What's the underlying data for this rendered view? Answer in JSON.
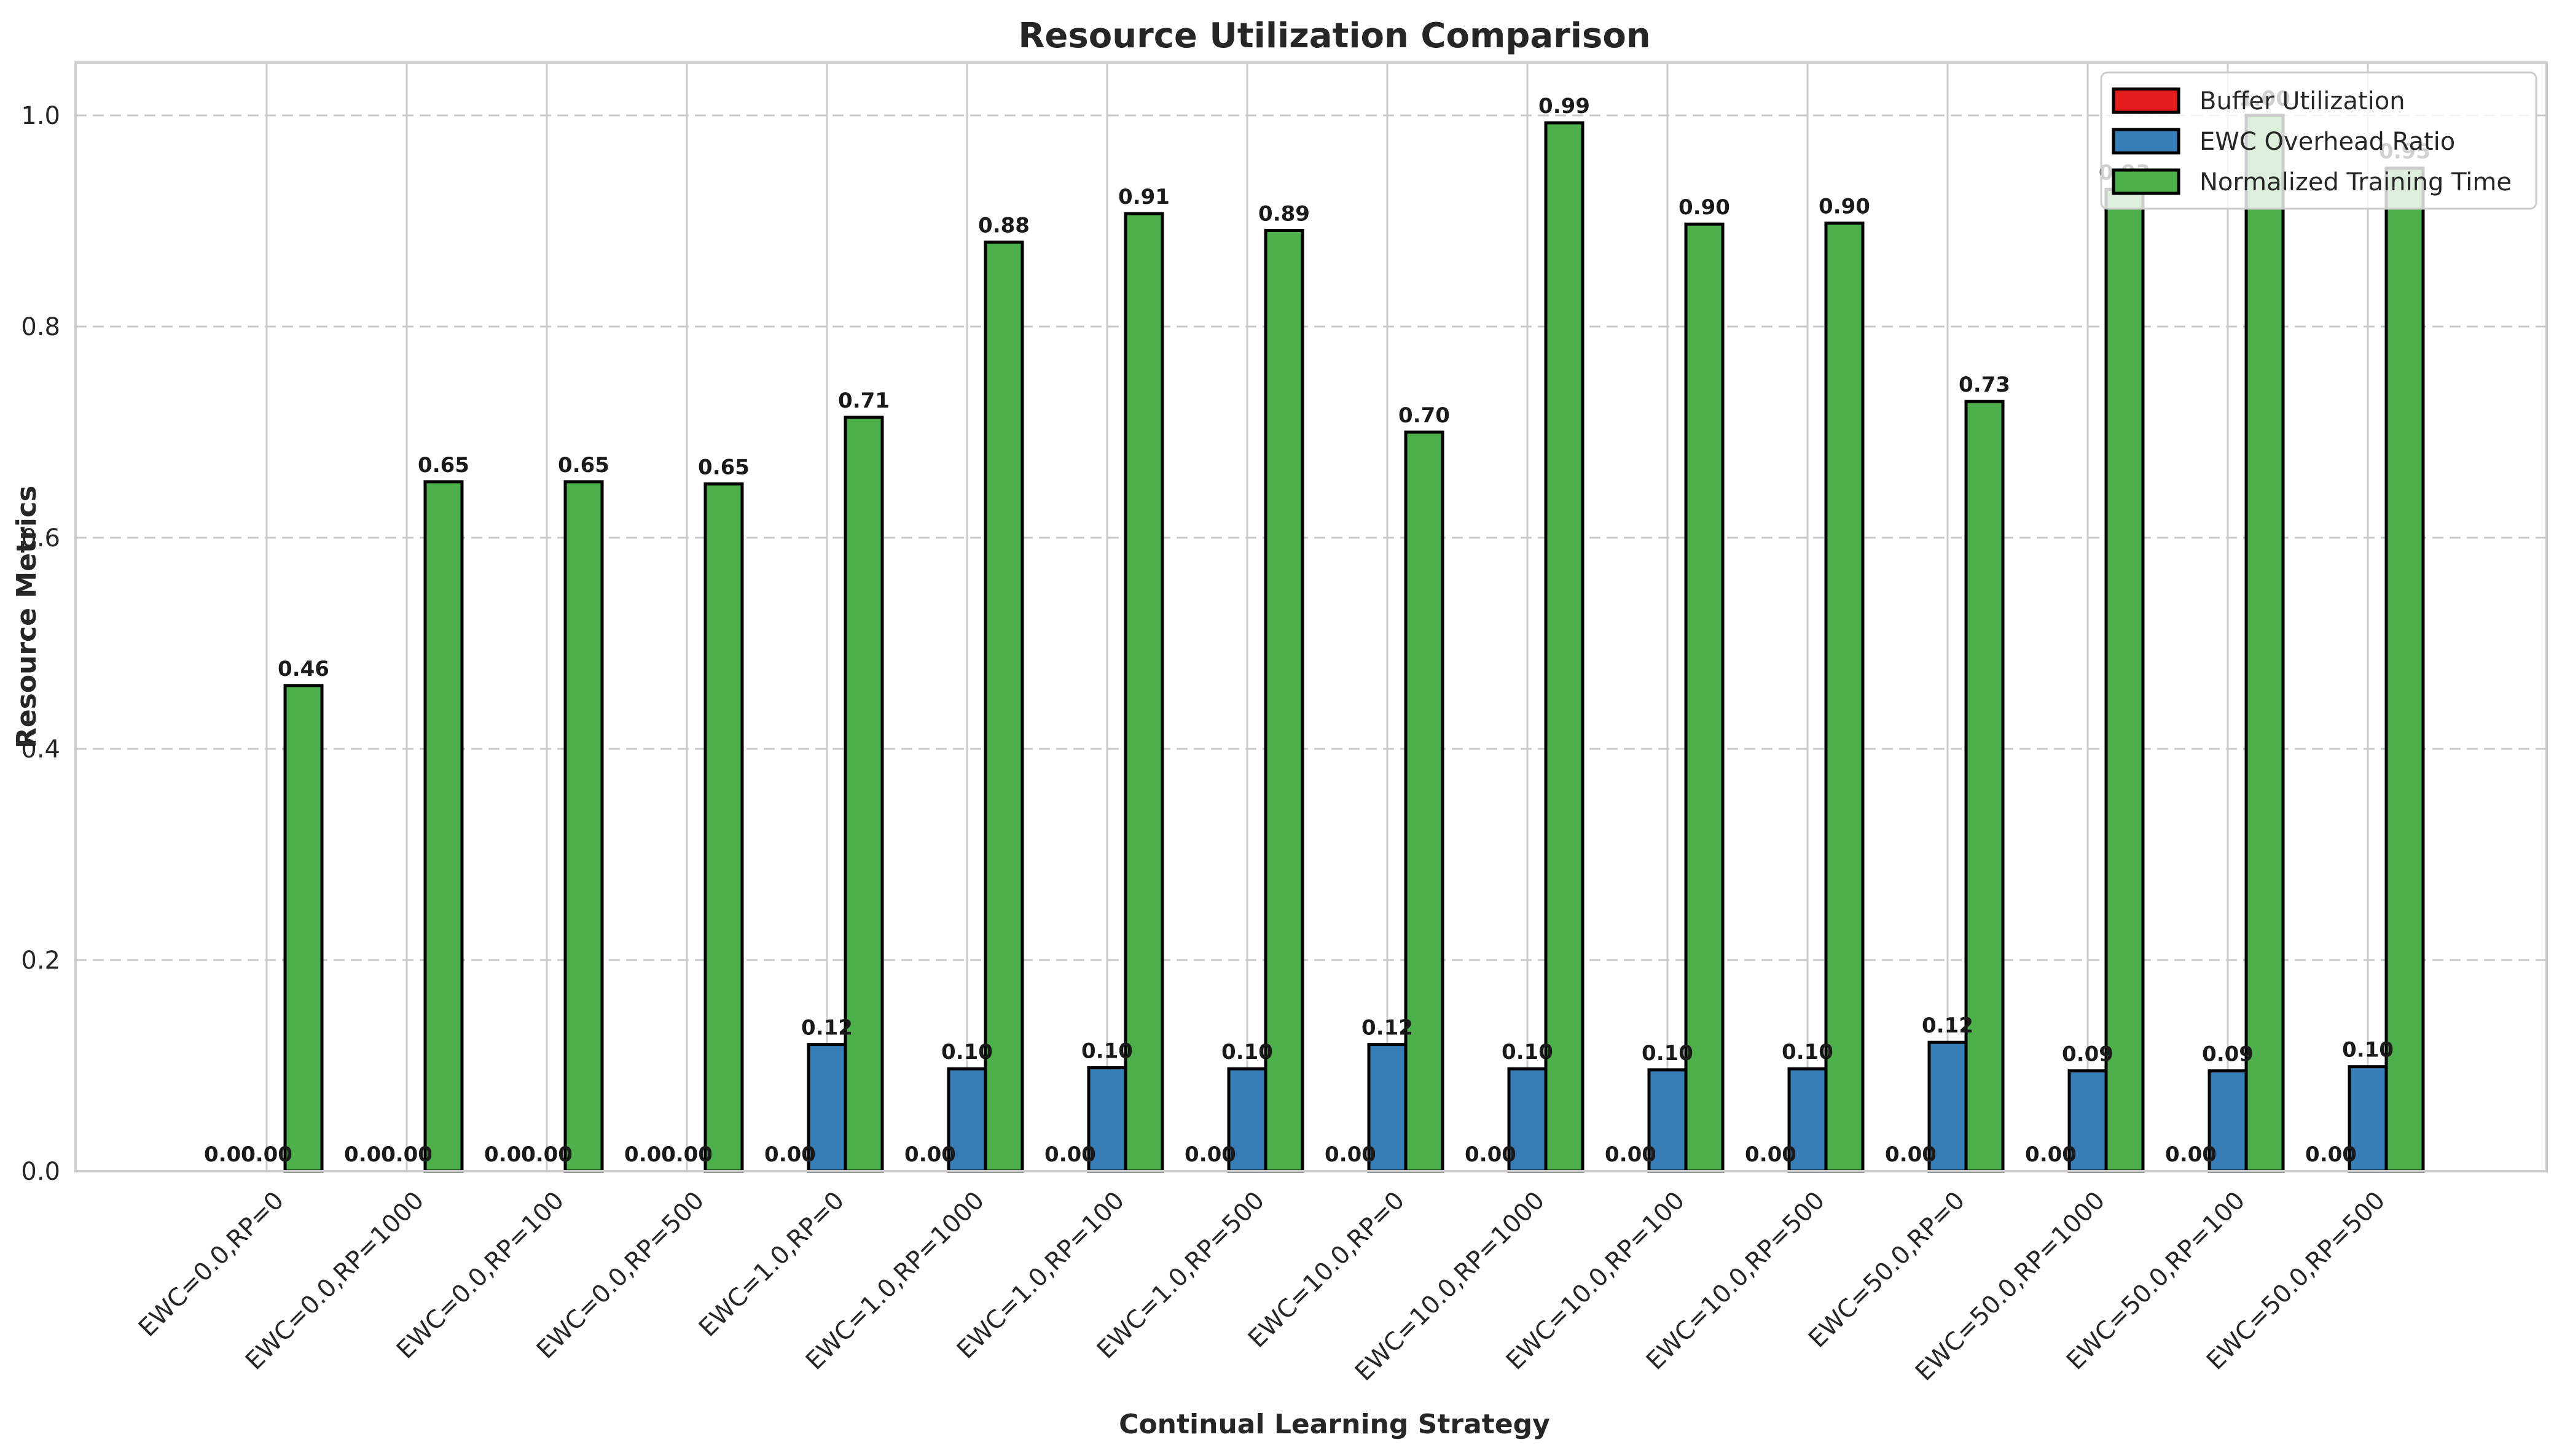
{
  "chart_data": {
    "type": "bar",
    "title": "Resource Utilization Comparison",
    "xlabel": "Continual Learning Strategy",
    "ylabel": "Resource Metrics",
    "ylim": [
      0,
      1.05
    ],
    "yticks": [
      "0.0",
      "0.2",
      "0.4",
      "0.6",
      "0.8",
      "1.0"
    ],
    "grid": "y dashed",
    "legend_position": "top-right",
    "categories": [
      "EWC=0.0,RP=0",
      "EWC=0.0,RP=1000",
      "EWC=0.0,RP=100",
      "EWC=0.0,RP=500",
      "EWC=1.0,RP=0",
      "EWC=1.0,RP=1000",
      "EWC=1.0,RP=100",
      "EWC=1.0,RP=500",
      "EWC=10.0,RP=0",
      "EWC=10.0,RP=1000",
      "EWC=10.0,RP=100",
      "EWC=10.0,RP=500",
      "EWC=50.0,RP=0",
      "EWC=50.0,RP=1000",
      "EWC=50.0,RP=100",
      "EWC=50.0,RP=500"
    ],
    "series": [
      {
        "name": "Buffer Utilization",
        "color": "#e41a1c",
        "values": [
          0,
          0,
          0,
          0,
          0,
          0,
          0,
          0,
          0,
          0,
          0,
          0,
          0,
          0,
          0,
          0
        ],
        "labels": [
          "0.00",
          "0.00",
          "0.00",
          "0.00",
          "0.00",
          "0.00",
          "0.00",
          "0.00",
          "0.00",
          "0.00",
          "0.00",
          "0.00",
          "0.00",
          "0.00",
          "0.00",
          "0.00"
        ]
      },
      {
        "name": "EWC Overhead Ratio",
        "color": "#377eb8",
        "values": [
          0,
          0,
          0,
          0,
          0.12,
          0.097,
          0.098,
          0.097,
          0.12,
          0.097,
          0.096,
          0.097,
          0.122,
          0.095,
          0.095,
          0.099
        ],
        "labels": [
          "0.00",
          "0.00",
          "0.00",
          "0.00",
          "0.12",
          "0.10",
          "0.10",
          "0.10",
          "0.12",
          "0.10",
          "0.10",
          "0.10",
          "0.12",
          "0.09",
          "0.09",
          "0.10"
        ]
      },
      {
        "name": "Normalized Training Time",
        "color": "#4daf4a",
        "values": [
          0.46,
          0.653,
          0.653,
          0.651,
          0.714,
          0.88,
          0.907,
          0.891,
          0.7,
          0.993,
          0.897,
          0.898,
          0.729,
          0.93,
          1.0,
          0.95
        ],
        "labels": [
          "0.46",
          "0.65",
          "0.65",
          "0.65",
          "0.71",
          "0.88",
          "0.91",
          "0.89",
          "0.70",
          "0.99",
          "0.90",
          "0.90",
          "0.73",
          "0.93",
          "1.00",
          "0.95"
        ]
      }
    ]
  }
}
